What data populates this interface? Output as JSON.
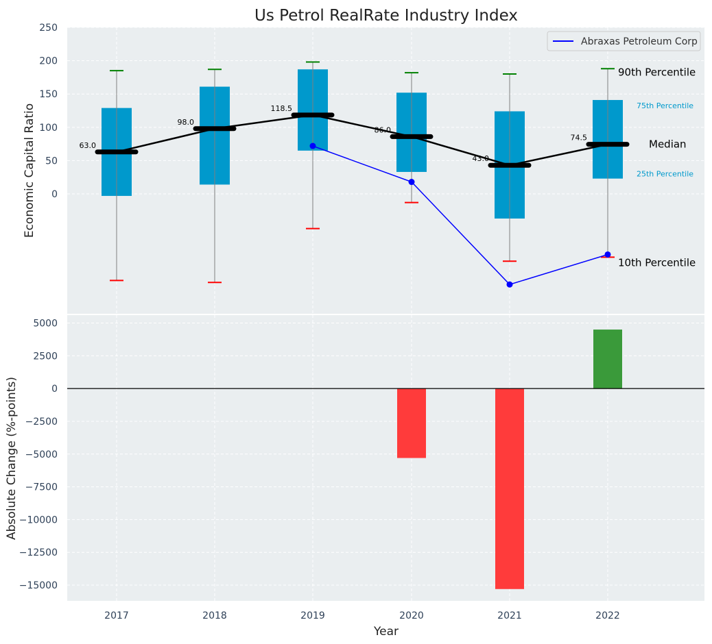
{
  "chart_data": [
    {
      "type": "box",
      "title": "Us Petrol RealRate Industry Index",
      "ylabel": "Economic Capital Ratio",
      "xlabel": "",
      "ylim": [
        -180,
        250
      ],
      "yticks": [
        0,
        50,
        100,
        150,
        200,
        250
      ],
      "grid": true,
      "legend_position": "top-right",
      "colors": {
        "box": "#0099cc",
        "median": "#000000",
        "p90": "#008000",
        "p10": "#ff0000",
        "whisker": "#808080",
        "series": "#0000ff",
        "background": "#eaeef0"
      },
      "categories": [
        "2017",
        "2018",
        "2019",
        "2020",
        "2021",
        "2022"
      ],
      "boxes": [
        {
          "year": "2017",
          "p10": -130,
          "p25": -3,
          "median": 63.0,
          "p75": 129,
          "p90": 185
        },
        {
          "year": "2018",
          "p10": -133,
          "p25": 14,
          "median": 98.0,
          "p75": 161,
          "p90": 187
        },
        {
          "year": "2019",
          "p10": -52,
          "p25": 65,
          "median": 118.5,
          "p75": 187,
          "p90": 198
        },
        {
          "year": "2020",
          "p10": -13,
          "p25": 33,
          "median": 86.0,
          "p75": 152,
          "p90": 182
        },
        {
          "year": "2021",
          "p10": -101,
          "p25": -37,
          "median": 43.0,
          "p75": 124,
          "p90": 180
        },
        {
          "year": "2022",
          "p10": -95,
          "p25": 23,
          "median": 74.5,
          "p75": 141,
          "p90": 188
        }
      ],
      "median_labels": [
        "63.0",
        "98.0",
        "118.5",
        "86.0",
        "43.0",
        "74.5"
      ],
      "series": [
        {
          "name": "Abraxas Petroleum Corp",
          "x": [
            "2019",
            "2020",
            "2021",
            "2022"
          ],
          "values": [
            72,
            18,
            -136,
            -91
          ]
        }
      ],
      "annotations": {
        "p90": "90th Percentile",
        "p75": "75th Percentile",
        "median": "Median",
        "p25": "25th Percentile",
        "p10": "10th Percentile"
      }
    },
    {
      "type": "bar",
      "xlabel": "Year",
      "ylabel": "Absolute Change (%-points)",
      "ylim": [
        -16200,
        5600
      ],
      "yticks": [
        5000,
        2500,
        0,
        -2500,
        -5000,
        -7500,
        -10000,
        -12500,
        -15000
      ],
      "ytick_labels": [
        "5000",
        "2500",
        "0",
        "−2500",
        "−5000",
        "−7500",
        "−10000",
        "−12500",
        "−15000"
      ],
      "grid": true,
      "categories": [
        "2017",
        "2018",
        "2019",
        "2020",
        "2021",
        "2022"
      ],
      "values": [
        0,
        0,
        0,
        -5300,
        -15300,
        4500
      ],
      "colors": {
        "negative": "#ff3b3b",
        "positive": "#3a9a3a"
      }
    }
  ]
}
